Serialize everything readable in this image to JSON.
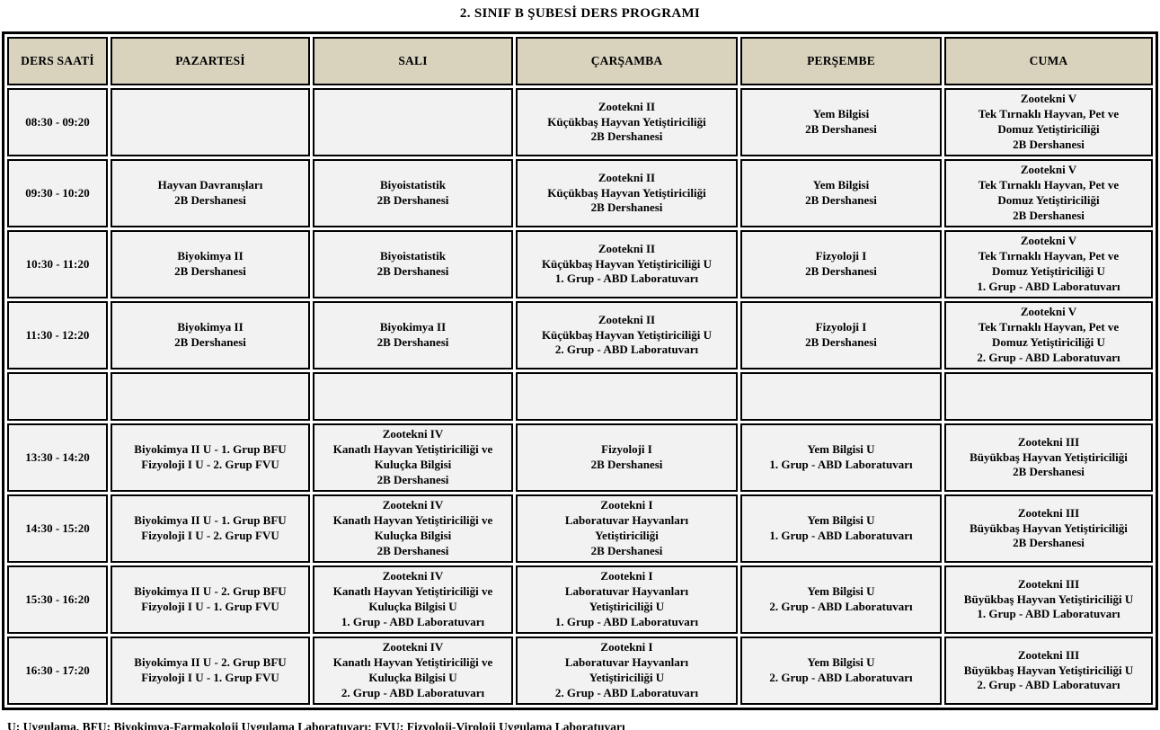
{
  "title": "2. SINIF B ŞUBESİ DERS PROGRAMI",
  "colors": {
    "header_bg": "#d9d3be",
    "cell_bg": "#f2f2f2",
    "border": "#000000",
    "page_bg": "#ffffff"
  },
  "schedule": {
    "headers": [
      "DERS SAATİ",
      "PAZARTESİ",
      "SALI",
      "ÇARŞAMBA",
      "PERŞEMBE",
      "CUMA"
    ],
    "rows": [
      {
        "time": "08:30 - 09:20",
        "is_break": false,
        "cells": [
          [],
          [],
          [
            "Zootekni II",
            "Küçükbaş Hayvan Yetiştiriciliği",
            "2B Dershanesi"
          ],
          [
            "Yem Bilgisi",
            "2B Dershanesi"
          ],
          [
            "Zootekni V",
            "Tek Tırnaklı Hayvan, Pet ve",
            "Domuz Yetiştiriciliği",
            "2B Dershanesi"
          ]
        ]
      },
      {
        "time": "09:30 - 10:20",
        "is_break": false,
        "cells": [
          [
            "Hayvan Davranışları",
            "2B Dershanesi"
          ],
          [
            "Biyoistatistik",
            "2B Dershanesi"
          ],
          [
            "Zootekni II",
            "Küçükbaş Hayvan Yetiştiriciliği",
            "2B Dershanesi"
          ],
          [
            "Yem Bilgisi",
            "2B Dershanesi"
          ],
          [
            "Zootekni V",
            "Tek Tırnaklı Hayvan, Pet ve",
            "Domuz Yetiştiriciliği",
            "2B Dershanesi"
          ]
        ]
      },
      {
        "time": "10:30 - 11:20",
        "is_break": false,
        "cells": [
          [
            "Biyokimya II",
            "2B Dershanesi"
          ],
          [
            "Biyoistatistik",
            "2B Dershanesi"
          ],
          [
            "Zootekni II",
            "Küçükbaş Hayvan Yetiştiriciliği U",
            "1. Grup - ABD Laboratuvarı"
          ],
          [
            "Fizyoloji I",
            "2B Dershanesi"
          ],
          [
            "Zootekni V",
            "Tek Tırnaklı Hayvan, Pet ve",
            "Domuz Yetiştiriciliği U",
            "1. Grup - ABD Laboratuvarı"
          ]
        ]
      },
      {
        "time": "11:30 - 12:20",
        "is_break": false,
        "cells": [
          [
            "Biyokimya II",
            "2B Dershanesi"
          ],
          [
            "Biyokimya II",
            "2B Dershanesi"
          ],
          [
            "Zootekni II",
            "Küçükbaş Hayvan Yetiştiriciliği U",
            "2. Grup - ABD Laboratuvarı"
          ],
          [
            "Fizyoloji I",
            "2B Dershanesi"
          ],
          [
            "Zootekni V",
            "Tek Tırnaklı Hayvan, Pet ve",
            "Domuz Yetiştiriciliği U",
            "2. Grup - ABD Laboratuvarı"
          ]
        ]
      },
      {
        "time": "",
        "is_break": true,
        "cells": [
          [],
          [],
          [],
          [],
          []
        ]
      },
      {
        "time": "13:30 - 14:20",
        "is_break": false,
        "cells": [
          [
            "Biyokimya II U - 1. Grup BFU",
            "Fizyoloji I U - 2. Grup FVU"
          ],
          [
            "Zootekni IV",
            "Kanatlı Hayvan Yetiştiriciliği ve",
            "Kuluçka Bilgisi",
            "2B Dershanesi"
          ],
          [
            "Fizyoloji I",
            "2B Dershanesi"
          ],
          [
            "Yem Bilgisi U",
            "1. Grup - ABD Laboratuvarı"
          ],
          [
            "Zootekni III",
            "Büyükbaş Hayvan Yetiştiriciliği",
            "2B Dershanesi"
          ]
        ]
      },
      {
        "time": "14:30 - 15:20",
        "is_break": false,
        "cells": [
          [
            "Biyokimya II U - 1. Grup BFU",
            "Fizyoloji I U - 2. Grup FVU"
          ],
          [
            "Zootekni IV",
            "Kanatlı Hayvan Yetiştiriciliği ve",
            "Kuluçka Bilgisi",
            "2B Dershanesi"
          ],
          [
            "Zootekni I",
            "Laboratuvar Hayvanları",
            "Yetiştiriciliği",
            "2B Dershanesi"
          ],
          [
            "Yem Bilgisi U",
            "1. Grup - ABD Laboratuvarı"
          ],
          [
            "Zootekni III",
            "Büyükbaş Hayvan Yetiştiriciliği",
            "2B Dershanesi"
          ]
        ]
      },
      {
        "time": "15:30 - 16:20",
        "is_break": false,
        "cells": [
          [
            "Biyokimya II U - 2. Grup BFU",
            "Fizyoloji I U - 1. Grup FVU"
          ],
          [
            "Zootekni IV",
            "Kanatlı Hayvan Yetiştiriciliği ve",
            "Kuluçka Bilgisi U",
            "1. Grup - ABD Laboratuvarı"
          ],
          [
            "Zootekni I",
            "Laboratuvar Hayvanları",
            "Yetiştiriciliği U",
            "1. Grup - ABD Laboratuvarı"
          ],
          [
            "Yem Bilgisi U",
            "2. Grup - ABD Laboratuvarı"
          ],
          [
            "Zootekni III",
            "Büyükbaş Hayvan Yetiştiriciliği U",
            "1. Grup - ABD Laboratuvarı"
          ]
        ]
      },
      {
        "time": "16:30 - 17:20",
        "is_break": false,
        "cells": [
          [
            "Biyokimya II U - 2. Grup BFU",
            "Fizyoloji I U - 1. Grup FVU"
          ],
          [
            "Zootekni IV",
            "Kanatlı Hayvan Yetiştiriciliği ve",
            "Kuluçka Bilgisi U",
            "2. Grup - ABD Laboratuvarı"
          ],
          [
            "Zootekni I",
            "Laboratuvar Hayvanları",
            "Yetiştiriciliği U",
            "2. Grup - ABD Laboratuvarı"
          ],
          [
            "Yem Bilgisi U",
            "2. Grup - ABD Laboratuvarı"
          ],
          [
            "Zootekni III",
            "Büyükbaş Hayvan Yetiştiriciliği U",
            "2. Grup - ABD Laboratuvarı"
          ]
        ]
      }
    ]
  },
  "footer": "U: Uygulama, BFU: Biyokimya-Farmakoloji Uygulama Laboratuvarı; FVU: Fizyoloji-Viroloji Uygulama Laboratuvarı"
}
